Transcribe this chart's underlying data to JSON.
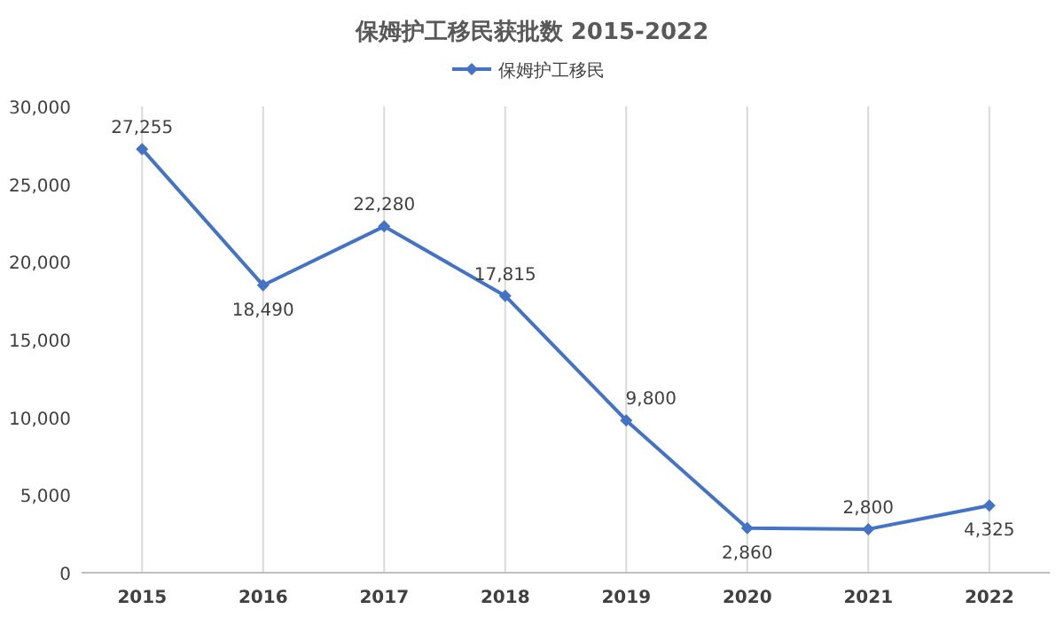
{
  "chart_data": {
    "type": "line",
    "title": "保姆护工移民获批数 2015-2022",
    "categories": [
      "2015",
      "2016",
      "2017",
      "2018",
      "2019",
      "2020",
      "2021",
      "2022"
    ],
    "series": [
      {
        "name": "保姆护工移民",
        "color": "#4472c4",
        "values": [
          27255,
          18490,
          22280,
          17815,
          9800,
          2860,
          2800,
          4325
        ],
        "value_labels": [
          "27,255",
          "18,490",
          "22,280",
          "17,815",
          "9,800",
          "2,860",
          "2,800",
          "4,325"
        ]
      }
    ],
    "ylim": [
      0,
      30000
    ],
    "yticks": [
      {
        "value": 0,
        "label": "0"
      },
      {
        "value": 5000,
        "label": "5,000"
      },
      {
        "value": 10000,
        "label": "10,000"
      },
      {
        "value": 15000,
        "label": "15,000"
      },
      {
        "value": 20000,
        "label": "20,000"
      },
      {
        "value": 25000,
        "label": "25,000"
      },
      {
        "value": 30000,
        "label": "30,000"
      }
    ],
    "grid": "x",
    "legend": "top",
    "marker": "diamond",
    "line_style": "solid"
  }
}
